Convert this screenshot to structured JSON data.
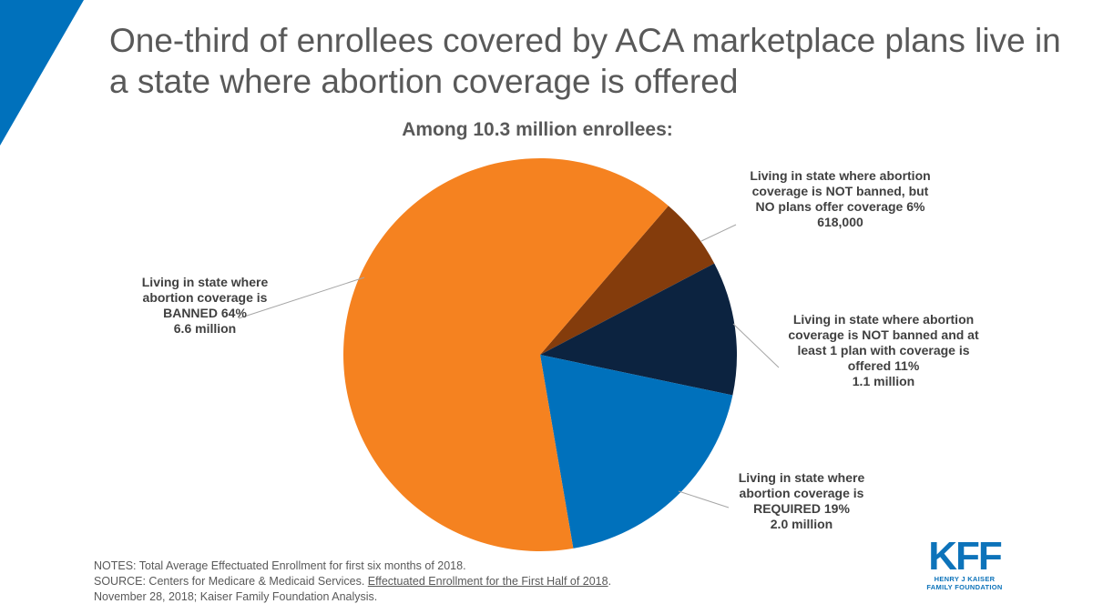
{
  "title": "One-third of enrollees covered by ACA marketplace plans live in a state where abortion coverage is offered",
  "subtitle": "Among 10.3 million enrollees:",
  "colors": {
    "banned": "#f58220",
    "not_banned_no_plans": "#843c0c",
    "not_banned_offered": "#0c2340",
    "required": "#0071bc",
    "leader": "#a6a6a6",
    "corner": "#0071bc"
  },
  "chart_data": {
    "type": "pie",
    "title": "Among 10.3 million enrollees:",
    "slices": [
      {
        "key": "not_banned_no_plans",
        "label": "Living in state where abortion coverage is NOT banned, but NO plans offer coverage",
        "percent": 6,
        "value_text": "618,000",
        "color": "#843c0c"
      },
      {
        "key": "not_banned_offered",
        "label": "Living in state where abortion coverage is NOT banned and at least 1 plan with coverage is offered",
        "percent": 11,
        "value_text": "1.1 million",
        "color": "#0c2340"
      },
      {
        "key": "required",
        "label": "Living in state where abortion coverage is REQUIRED",
        "percent": 19,
        "value_text": "2.0 million",
        "color": "#0071bc"
      },
      {
        "key": "banned",
        "label": "Living in state where abortion coverage is BANNED",
        "percent": 64,
        "value_text": "6.6 million",
        "color": "#f58220"
      }
    ]
  },
  "labels": {
    "no_plans": {
      "lines": [
        "Living in state where abortion",
        "coverage is NOT banned, but",
        "NO plans offer coverage 6%",
        "618,000"
      ]
    },
    "offered": {
      "lines": [
        "Living in state where abortion",
        "coverage is NOT banned and at",
        "least 1 plan with coverage is",
        "offered 11%",
        "1.1 million"
      ]
    },
    "required": {
      "lines": [
        "Living in state where",
        "abortion coverage is",
        "REQUIRED 19%",
        "2.0 million"
      ]
    },
    "banned": {
      "lines": [
        "Living in state where",
        "abortion coverage is",
        "BANNED 64%",
        "6.6 million"
      ]
    }
  },
  "notes": {
    "line1": "NOTES: Total Average Effectuated Enrollment for first six months of 2018.",
    "source_prefix": "SOURCE: Centers for Medicare & Medicaid Services. ",
    "source_link": "Effectuated Enrollment for the First Half of 2018",
    "source_suffix": ".",
    "line3": "November 28, 2018; Kaiser Family Foundation Analysis."
  },
  "logo": {
    "mark": "KFF",
    "line1": "HENRY J KAISER",
    "line2": "FAMILY FOUNDATION"
  }
}
